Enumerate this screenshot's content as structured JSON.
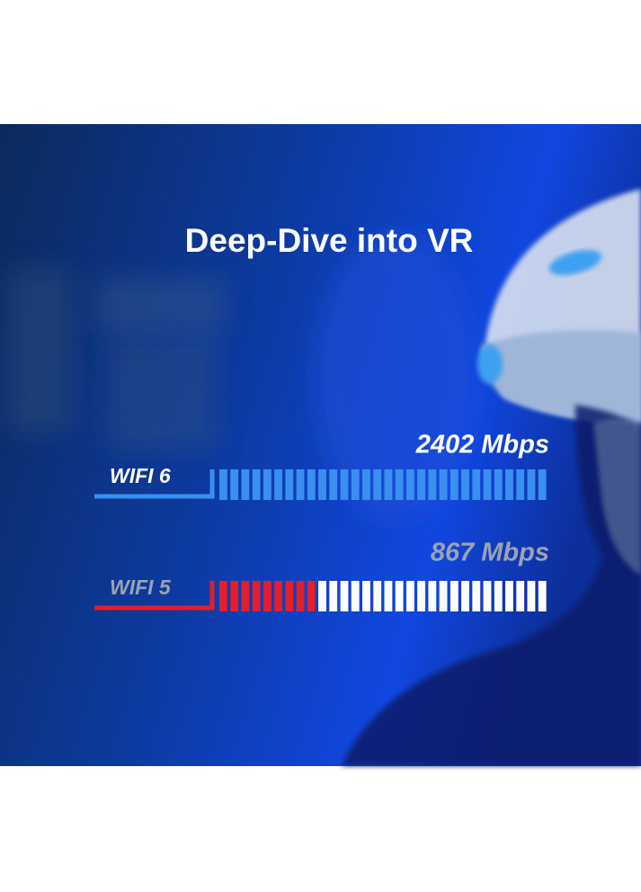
{
  "title": "Deep-Dive into VR",
  "rows": [
    {
      "label": "WIFI 6",
      "speed": "2402 Mbps"
    },
    {
      "label": "WIFI 5",
      "speed": "867 Mbps"
    }
  ]
}
